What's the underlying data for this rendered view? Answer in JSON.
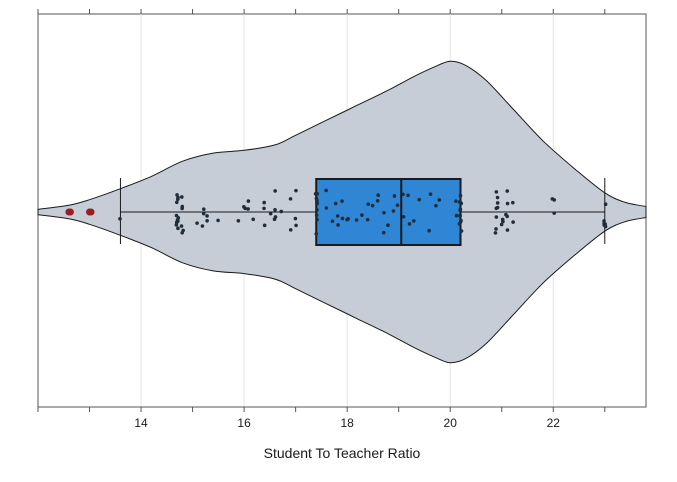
{
  "chart_data": {
    "type": "violin",
    "xlabel": "Student To Teacher Ratio",
    "ylabel": "",
    "title": "",
    "xlim": [
      12.0,
      23.8
    ],
    "x_ticks": [
      14,
      16,
      18,
      20,
      22
    ],
    "grid": "vertical",
    "violin_profile": [
      [
        12.0,
        0.02
      ],
      [
        12.6,
        0.05
      ],
      [
        13.0,
        0.09
      ],
      [
        13.6,
        0.17
      ],
      [
        14.2,
        0.26
      ],
      [
        14.8,
        0.37
      ],
      [
        15.4,
        0.43
      ],
      [
        16.0,
        0.45
      ],
      [
        16.6,
        0.49
      ],
      [
        17.0,
        0.56
      ],
      [
        17.6,
        0.67
      ],
      [
        18.2,
        0.78
      ],
      [
        18.8,
        0.89
      ],
      [
        19.3,
        0.99
      ],
      [
        19.7,
        1.06
      ],
      [
        20.0,
        1.1
      ],
      [
        20.3,
        1.07
      ],
      [
        20.7,
        0.96
      ],
      [
        21.2,
        0.76
      ],
      [
        21.8,
        0.52
      ],
      [
        22.4,
        0.32
      ],
      [
        23.0,
        0.14
      ],
      [
        23.4,
        0.07
      ],
      [
        23.8,
        0.04
      ]
    ],
    "box": {
      "whisker_low": 13.6,
      "q1": 17.4,
      "median": 19.05,
      "q3": 20.2,
      "whisker_high": 23.0
    },
    "outliers": [
      12.6,
      12.6,
      13.0,
      13.0
    ],
    "points_x": [
      13.6,
      14.7,
      14.7,
      14.7,
      14.7,
      14.7,
      14.7,
      14.7,
      14.7,
      14.7,
      14.7,
      14.7,
      14.7,
      14.8,
      14.8,
      14.8,
      14.8,
      14.8,
      14.8,
      15.1,
      15.2,
      15.2,
      15.2,
      15.3,
      15.3,
      15.5,
      15.9,
      16.0,
      16.0,
      16.1,
      16.1,
      16.2,
      16.4,
      16.4,
      16.4,
      16.5,
      16.6,
      16.6,
      16.6,
      16.6,
      16.7,
      16.9,
      16.9,
      17.0,
      17.0,
      17.0,
      17.4,
      17.4,
      17.4,
      17.4,
      17.4,
      17.4,
      17.4,
      17.4,
      17.4,
      17.4,
      17.6,
      17.6,
      17.7,
      17.8,
      17.8,
      17.8,
      17.9,
      17.9,
      18.0,
      18.0,
      18.2,
      18.3,
      18.4,
      18.4,
      18.5,
      18.6,
      18.6,
      18.7,
      18.7,
      18.8,
      18.9,
      18.9,
      19.0,
      19.1,
      19.1,
      19.2,
      19.2,
      19.3,
      19.4,
      19.6,
      19.6,
      19.7,
      19.8,
      20.1,
      20.1,
      20.2,
      20.2,
      20.2,
      20.2,
      20.2,
      20.2,
      20.2,
      20.2,
      20.2,
      20.2,
      20.2,
      20.2,
      20.2,
      20.9,
      20.9,
      20.9,
      20.9,
      20.9,
      20.9,
      20.9,
      20.9,
      21.0,
      21.0,
      21.0,
      21.1,
      21.1,
      21.1,
      21.1,
      21.1,
      21.2,
      21.2,
      22.0,
      22.0,
      22.0,
      23.0,
      23.0,
      23.0,
      23.0,
      23.0,
      23.0
    ]
  }
}
